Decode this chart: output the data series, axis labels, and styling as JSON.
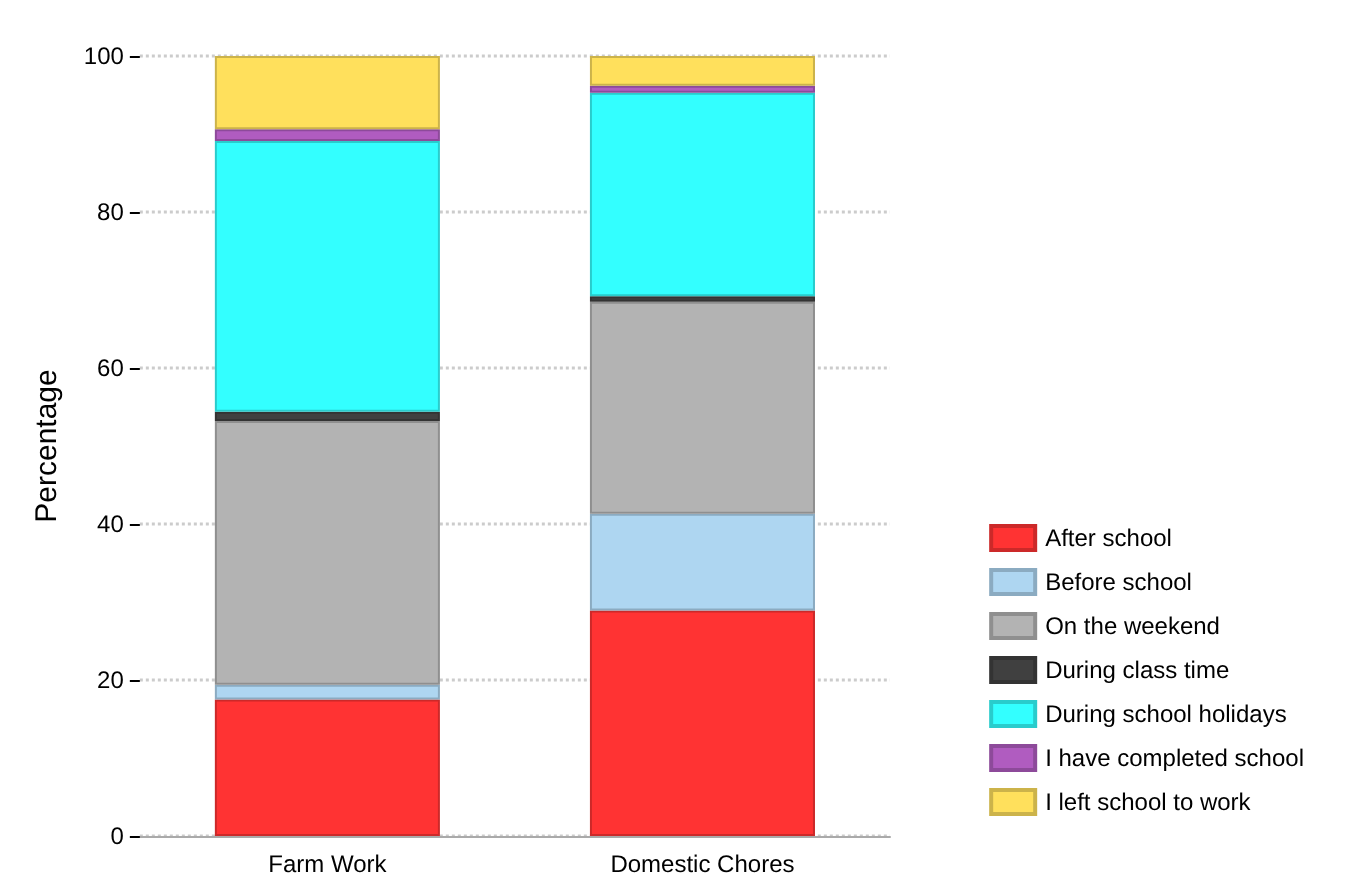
{
  "chart_data": {
    "type": "bar",
    "stacked": true,
    "ylabel": "Percentage",
    "categories": [
      "Farm Work",
      "Domestic Chores"
    ],
    "series": [
      {
        "name": "After school",
        "color": "#ff3333",
        "values": [
          17.5,
          28.9
        ]
      },
      {
        "name": "Before school",
        "color": "#aed6f1",
        "values": [
          1.9,
          12.4
        ]
      },
      {
        "name": "On the weekend",
        "color": "#b3b3b3",
        "values": [
          33.8,
          27.2
        ]
      },
      {
        "name": "During class time",
        "color": "#404040",
        "values": [
          1.2,
          0.7
        ]
      },
      {
        "name": "During school holidays",
        "color": "#33ffff",
        "values": [
          34.7,
          26.1
        ]
      },
      {
        "name": "I have completed school",
        "color": "#b05cc0",
        "values": [
          1.5,
          0.9
        ]
      },
      {
        "name": "I left school to work",
        "color": "#ffe05c",
        "values": [
          9.4,
          3.8
        ]
      }
    ],
    "ylim": [
      0,
      100
    ],
    "yticks": [
      0,
      20,
      40,
      60,
      80,
      100
    ],
    "grid": "y",
    "legend": "bottom right"
  }
}
